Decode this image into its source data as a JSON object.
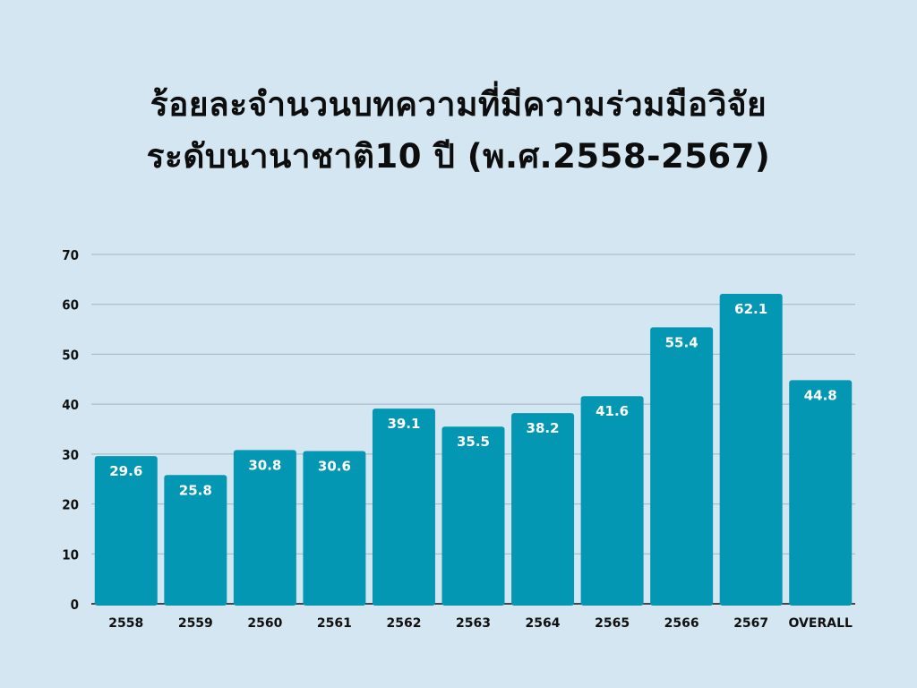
{
  "chart_data": {
    "type": "bar",
    "title_lines": [
      "ร้อยละจำนวนบทความที่มีความร่วมมือวิจัย",
      "ระดับนานาชาติ10 ปี (พ.ศ.2558-2567)"
    ],
    "categories": [
      "2558",
      "2559",
      "2560",
      "2561",
      "2562",
      "2563",
      "2564",
      "2565",
      "2566",
      "2567",
      "OVERALL"
    ],
    "values": [
      29.6,
      25.8,
      30.8,
      30.6,
      39.1,
      35.5,
      38.2,
      41.6,
      55.4,
      62.1,
      44.8
    ],
    "data_labels": [
      "29.6",
      "25.8",
      "30.8",
      "30.6",
      "39.1",
      "35.5",
      "38.2",
      "41.6",
      "55.4",
      "62.1",
      "44.8"
    ],
    "xlabel": "",
    "ylabel": "",
    "ylim": [
      0,
      70
    ],
    "yticks": [
      "0",
      "10",
      "20",
      "30",
      "40",
      "50",
      "60",
      "70"
    ],
    "grid": true,
    "colors": {
      "bar": "#0497b3",
      "grid": "#9fb4c2",
      "background": "#d4e6f1",
      "axis": "#111111"
    }
  }
}
